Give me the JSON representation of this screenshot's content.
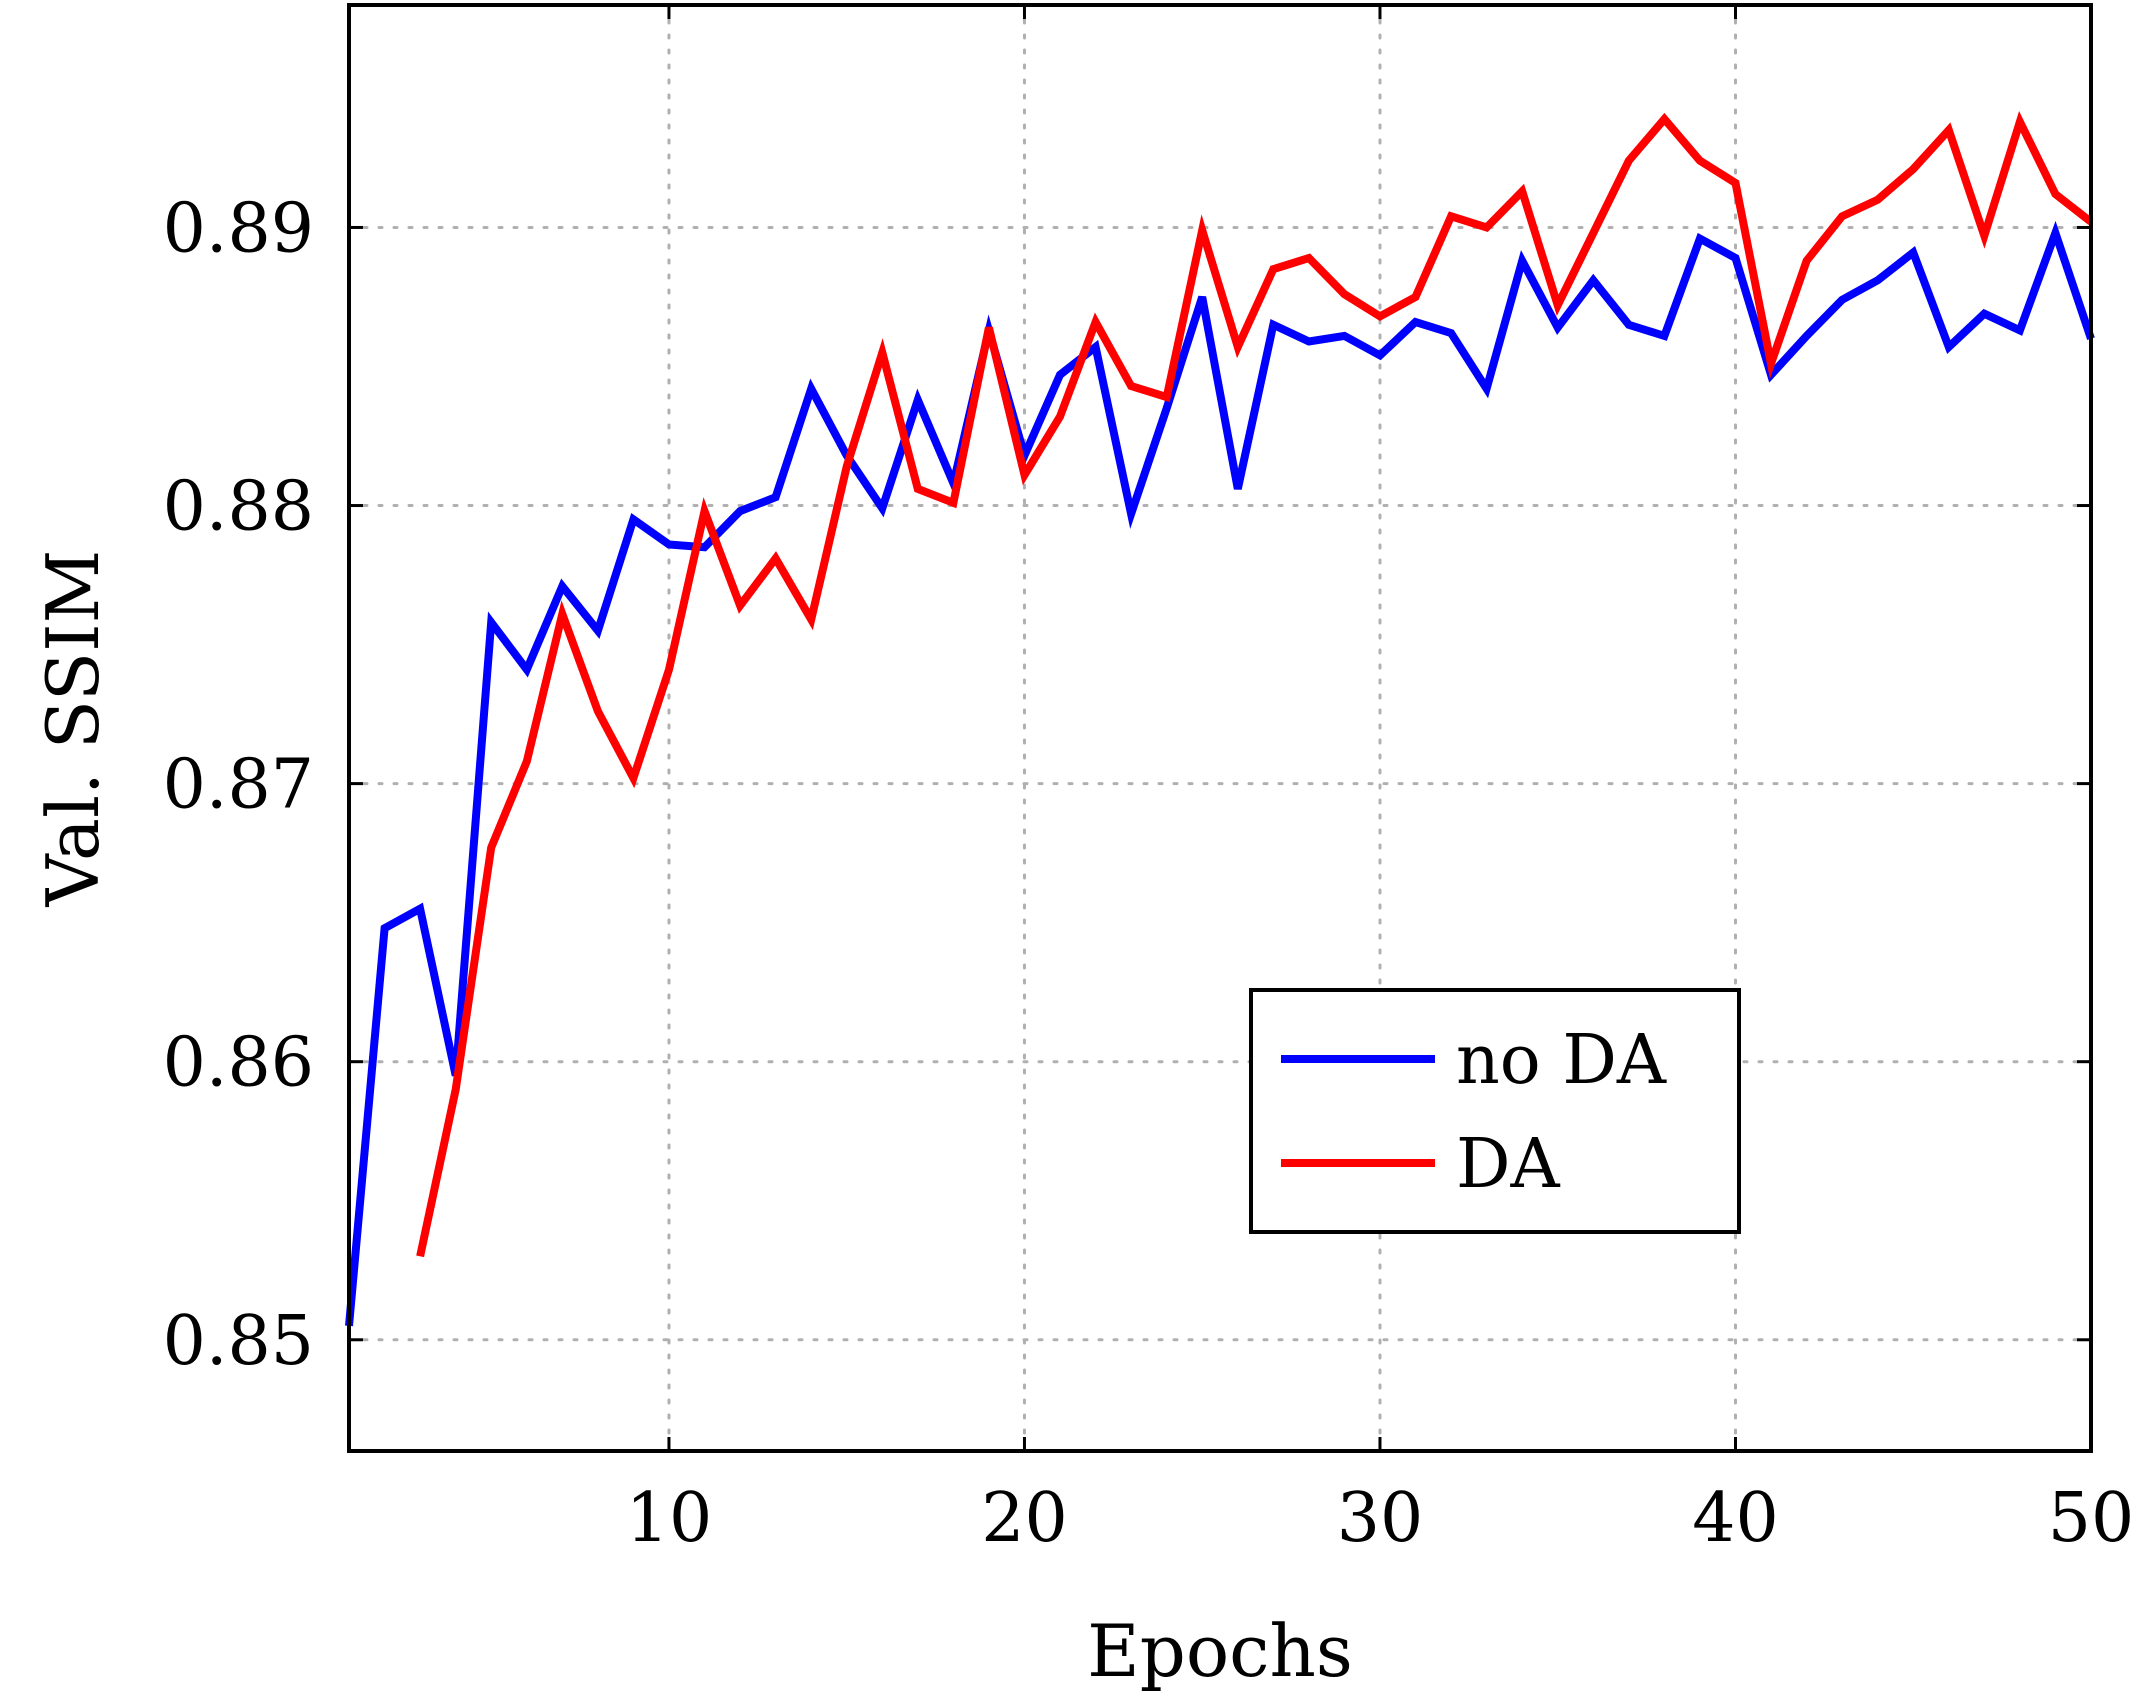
{
  "chart_data": {
    "type": "line",
    "title": "",
    "xlabel": "Epochs",
    "ylabel": "Val. SSIM",
    "xlim": [
      1,
      50
    ],
    "ylim": [
      0.846,
      0.898
    ],
    "xticks": [
      10,
      20,
      30,
      40,
      50
    ],
    "xtick_labels": [
      "10",
      "20",
      "30",
      "40",
      "50"
    ],
    "yticks": [
      0.85,
      0.86,
      0.87,
      0.88,
      0.89
    ],
    "ytick_labels": [
      "0.85",
      "0.86",
      "0.87",
      "0.88",
      "0.89"
    ],
    "grid": true,
    "legend_position": "bottom-right",
    "series": [
      {
        "name": "no DA",
        "color": "#0000ff",
        "x": [
          1,
          2,
          3,
          4,
          5,
          6,
          7,
          8,
          9,
          10,
          11,
          12,
          13,
          14,
          15,
          16,
          17,
          18,
          19,
          20,
          21,
          22,
          23,
          24,
          25,
          26,
          27,
          28,
          29,
          30,
          31,
          32,
          33,
          34,
          35,
          36,
          37,
          38,
          39,
          40,
          41,
          42,
          43,
          44,
          45,
          46,
          47,
          48,
          49,
          50
        ],
        "values": [
          0.8505,
          0.8648,
          0.8655,
          0.8595,
          0.8758,
          0.8741,
          0.8771,
          0.8755,
          0.8795,
          0.8786,
          0.8785,
          0.8798,
          0.8803,
          0.8842,
          0.8818,
          0.8799,
          0.8838,
          0.8808,
          0.8863,
          0.8818,
          0.8847,
          0.8857,
          0.8797,
          0.8835,
          0.8875,
          0.8806,
          0.8865,
          0.8859,
          0.8861,
          0.8854,
          0.8866,
          0.8862,
          0.8842,
          0.8888,
          0.8864,
          0.8881,
          0.8865,
          0.8861,
          0.8896,
          0.8889,
          0.8847,
          0.8861,
          0.8874,
          0.8881,
          0.8891,
          0.8857,
          0.8869,
          0.8863,
          0.8898,
          0.886
        ]
      },
      {
        "name": "DA",
        "color": "#ff0000",
        "x": [
          3,
          4,
          5,
          6,
          7,
          8,
          9,
          10,
          11,
          12,
          13,
          14,
          15,
          16,
          17,
          18,
          19,
          20,
          21,
          22,
          23,
          24,
          25,
          26,
          27,
          28,
          29,
          30,
          31,
          32,
          33,
          34,
          35,
          36,
          37,
          38,
          39,
          40,
          41,
          42,
          43,
          44,
          45,
          46,
          47,
          48,
          49,
          50
        ],
        "values": [
          0.853,
          0.859,
          0.8677,
          0.8708,
          0.8761,
          0.8726,
          0.8702,
          0.8741,
          0.8798,
          0.8764,
          0.8781,
          0.8759,
          0.8814,
          0.8855,
          0.8806,
          0.8801,
          0.8864,
          0.8811,
          0.8832,
          0.8866,
          0.8843,
          0.8839,
          0.8899,
          0.8857,
          0.8885,
          0.8889,
          0.8876,
          0.8868,
          0.8875,
          0.8904,
          0.89,
          0.8913,
          0.8872,
          0.8898,
          0.8924,
          0.8939,
          0.8924,
          0.8916,
          0.8851,
          0.8888,
          0.8904,
          0.891,
          0.8921,
          0.8935,
          0.8897,
          0.8938,
          0.8912,
          0.8902
        ]
      }
    ]
  }
}
